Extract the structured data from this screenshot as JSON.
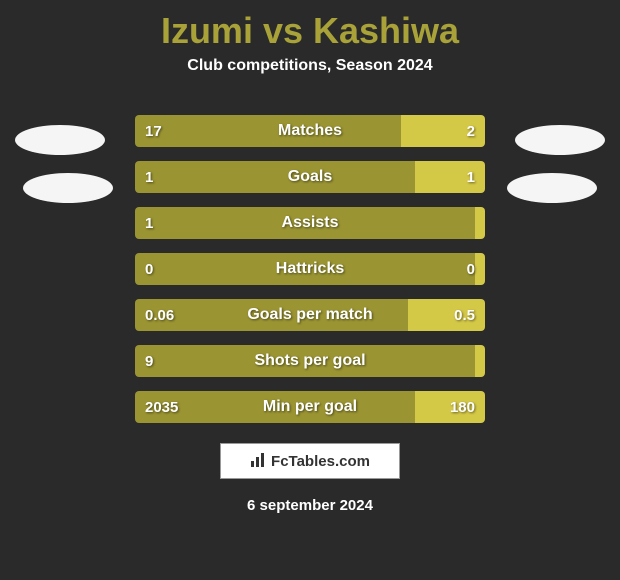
{
  "header": {
    "title": "Izumi vs Kashiwa",
    "subtitle": "Club competitions, Season 2024"
  },
  "colors": {
    "background": "#2a2a2a",
    "title": "#a8a238",
    "bar_left": "#9a9432",
    "bar_right": "#d4c847",
    "text": "#ffffff",
    "oval": "#f5f5f5"
  },
  "bars": [
    {
      "label": "Matches",
      "left_value": "17",
      "right_value": "2",
      "left_pct": 76,
      "right_pct": 24
    },
    {
      "label": "Goals",
      "left_value": "1",
      "right_value": "1",
      "left_pct": 80,
      "right_pct": 20
    },
    {
      "label": "Assists",
      "left_value": "1",
      "right_value": "",
      "left_pct": 100,
      "right_pct": 0
    },
    {
      "label": "Hattricks",
      "left_value": "0",
      "right_value": "0",
      "left_pct": 98,
      "right_pct": 2
    },
    {
      "label": "Goals per match",
      "left_value": "0.06",
      "right_value": "0.5",
      "left_pct": 78,
      "right_pct": 22
    },
    {
      "label": "Shots per goal",
      "left_value": "9",
      "right_value": "",
      "left_pct": 100,
      "right_pct": 0
    },
    {
      "label": "Min per goal",
      "left_value": "2035",
      "right_value": "180",
      "left_pct": 80,
      "right_pct": 20
    }
  ],
  "logo": {
    "text": "FcTables.com",
    "icon": "📊"
  },
  "date": "6 september 2024"
}
